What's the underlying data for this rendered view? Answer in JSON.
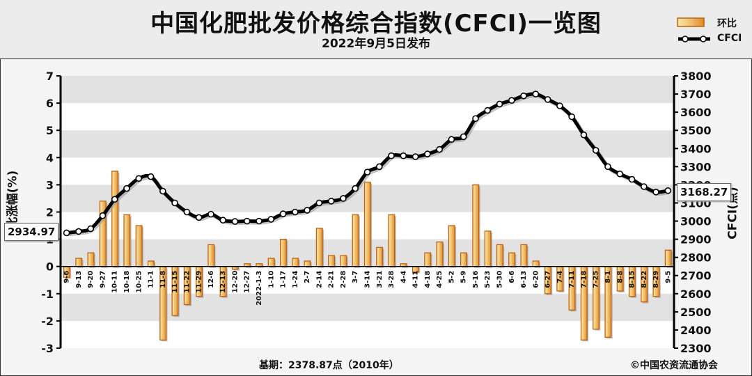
{
  "header": {
    "title": "中国化肥批发价格综合指数(CFCI)一览图",
    "subtitle": "2022年9月5日发布"
  },
  "legend": {
    "bar_label": "环比",
    "line_label": "CFCI"
  },
  "colors": {
    "bar_fill": "#e9a83a",
    "bar_edge": "#c0600f",
    "line": "#000000",
    "marker_fill": "#ffffff",
    "plot_bg": "#ffffff",
    "band": "#e2e2e2"
  },
  "callouts": {
    "first": "2934.97",
    "last": "3168.27"
  },
  "footer": {
    "base": "基期：2378.87点（2010年）",
    "copyright": "©中国农资流通协会"
  },
  "chart_data": {
    "type": "bar+line",
    "categories": [
      "9-6",
      "9-13",
      "9-20",
      "9-27",
      "10-11",
      "10-18",
      "10-25",
      "11-1",
      "11-8",
      "11-15",
      "11-22",
      "11-29",
      "12-6",
      "12-13",
      "12-20",
      "12-27",
      "2022-1-3",
      "1-10",
      "1-17",
      "1-24",
      "2-7",
      "2-14",
      "2-21",
      "2-28",
      "3-7",
      "3-14",
      "3-21",
      "3-28",
      "4-4",
      "4-11",
      "4-18",
      "4-25",
      "5-2",
      "5-9",
      "5-16",
      "5-23",
      "5-30",
      "6-6",
      "6-13",
      "6-20",
      "6-27",
      "7-4",
      "7-11",
      "7-18",
      "7-25",
      "8-1",
      "8-8",
      "8-15",
      "8-22",
      "8-29",
      "9-5"
    ],
    "series": [
      {
        "name": "环比",
        "axis": "left",
        "values": [
          -0.4,
          0.3,
          0.5,
          2.4,
          3.5,
          1.9,
          1.5,
          0.2,
          -2.7,
          -1.8,
          -1.4,
          -1.1,
          0.8,
          -1.1,
          -0.1,
          0.1,
          0.1,
          0.3,
          1.0,
          0.3,
          0.2,
          1.4,
          0.4,
          0.4,
          1.9,
          3.1,
          0.7,
          1.9,
          0.1,
          -0.2,
          0.5,
          0.9,
          1.5,
          0.5,
          3.0,
          1.3,
          0.8,
          0.5,
          0.8,
          0.2,
          -1.0,
          -0.9,
          -1.6,
          -2.7,
          -2.3,
          -2.6,
          -0.9,
          -1.1,
          -1.3,
          -1.1,
          0.6
        ]
      },
      {
        "name": "CFCI",
        "axis": "right",
        "values": [
          2935,
          2943,
          2958,
          3030,
          3120,
          3180,
          3235,
          3245,
          3165,
          3100,
          3050,
          3020,
          3038,
          3005,
          2998,
          3000,
          3000,
          3010,
          3040,
          3050,
          3060,
          3100,
          3110,
          3125,
          3180,
          3270,
          3300,
          3360,
          3360,
          3355,
          3370,
          3395,
          3450,
          3465,
          3565,
          3610,
          3645,
          3665,
          3690,
          3700,
          3670,
          3635,
          3575,
          3475,
          3390,
          3300,
          3260,
          3230,
          3190,
          3160,
          3168
        ]
      }
    ],
    "left_axis": {
      "title": "环比涨幅(%)",
      "min": -3,
      "max": 7,
      "ticks": [
        -3,
        -2,
        -1,
        0,
        1,
        2,
        3,
        4,
        5,
        6,
        7
      ]
    },
    "right_axis": {
      "title": "CFCI(点)",
      "min": 2300,
      "max": 3800,
      "ticks": [
        2300,
        2400,
        2500,
        2600,
        2700,
        2800,
        2900,
        3000,
        3100,
        3200,
        3300,
        3400,
        3500,
        3600,
        3700,
        3800
      ]
    },
    "grid": "horizontal bands",
    "legend_position": "top-right"
  }
}
